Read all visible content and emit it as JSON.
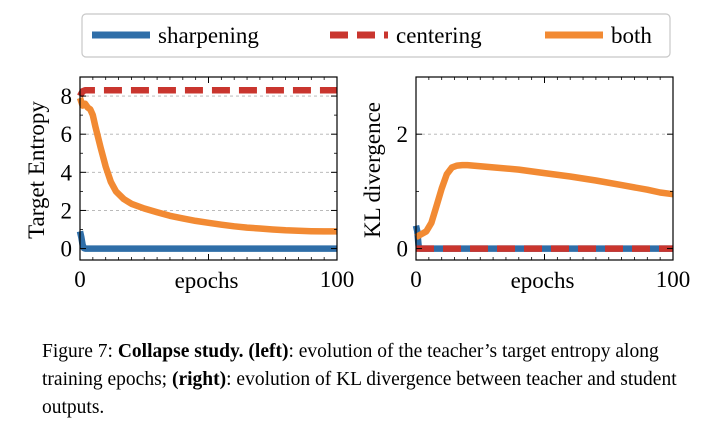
{
  "legend": [
    {
      "label": "sharpening",
      "color": "#2f6ea8",
      "dash": "solid"
    },
    {
      "label": "centering",
      "color": "#c9352e",
      "dash": "dashed"
    },
    {
      "label": "both",
      "color": "#f28a33",
      "dash": "solid"
    }
  ],
  "chart_data": [
    {
      "type": "line",
      "title": "",
      "xlabel": "epochs",
      "ylabel": "Target Entropy",
      "xlim": [
        0,
        100
      ],
      "ylim": [
        -0.6,
        9.0
      ],
      "xticks": [
        0,
        100
      ],
      "yticks": [
        0,
        2,
        4,
        6,
        8
      ],
      "grid": "horizontal",
      "series": [
        {
          "name": "sharpening",
          "x": [
            0,
            0.5,
            1,
            1.5,
            2,
            100
          ],
          "y": [
            0.9,
            0.6,
            0.2,
            0.02,
            0.0,
            0.0
          ]
        },
        {
          "name": "centering",
          "x": [
            0,
            1,
            2,
            100
          ],
          "y": [
            8.0,
            8.25,
            8.3,
            8.3
          ]
        },
        {
          "name": "both",
          "x": [
            0,
            1,
            2,
            3,
            4,
            5,
            6,
            8,
            10,
            12,
            14,
            17,
            20,
            25,
            30,
            35,
            40,
            45,
            50,
            55,
            60,
            65,
            70,
            75,
            80,
            85,
            90,
            95,
            100
          ],
          "y": [
            7.9,
            7.5,
            7.6,
            7.4,
            7.3,
            7.0,
            6.4,
            5.3,
            4.3,
            3.5,
            3.0,
            2.6,
            2.35,
            2.1,
            1.9,
            1.72,
            1.58,
            1.45,
            1.35,
            1.25,
            1.17,
            1.1,
            1.05,
            1.0,
            0.96,
            0.93,
            0.91,
            0.9,
            0.9
          ]
        }
      ]
    },
    {
      "type": "line",
      "title": "",
      "xlabel": "epochs",
      "ylabel": "KL divergence",
      "xlim": [
        0,
        100
      ],
      "ylim": [
        -0.2,
        3.0
      ],
      "xticks": [
        0,
        100
      ],
      "yticks": [
        0,
        2
      ],
      "grid": "horizontal",
      "series": [
        {
          "name": "sharpening",
          "x": [
            0,
            0.5,
            1,
            1.5,
            100
          ],
          "y": [
            0.4,
            0.3,
            0.05,
            0.0,
            0.0
          ]
        },
        {
          "name": "centering",
          "x": [
            0,
            100
          ],
          "y": [
            0.0,
            0.0
          ]
        },
        {
          "name": "both",
          "x": [
            0,
            2,
            4,
            6,
            8,
            10,
            12,
            14,
            16,
            18,
            20,
            25,
            30,
            40,
            50,
            60,
            70,
            80,
            90,
            95,
            100
          ],
          "y": [
            0.2,
            0.25,
            0.3,
            0.45,
            0.75,
            1.05,
            1.3,
            1.42,
            1.45,
            1.46,
            1.46,
            1.44,
            1.42,
            1.38,
            1.32,
            1.26,
            1.19,
            1.11,
            1.03,
            0.98,
            0.95
          ]
        }
      ]
    }
  ],
  "caption": {
    "figure_label": "Figure 7:",
    "bold_title": "Collapse study.",
    "left_tag": "(left)",
    "text_1": ": evolution of the teacher’s target entropy along training epochs;",
    "right_tag": "(right)",
    "text_2": ": evolution of KL divergence between teacher and student outputs."
  }
}
